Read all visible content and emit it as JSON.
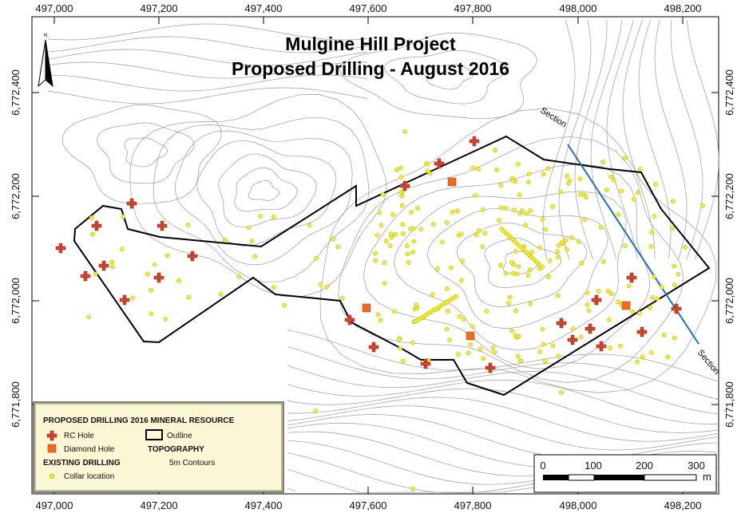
{
  "map": {
    "title_line1": "Mulgine Hill Project",
    "title_line2": "Proposed Drilling - August 2016",
    "x_ticks": [
      "497,000",
      "497,200",
      "497,400",
      "497,600",
      "497,800",
      "498,000",
      "498,200"
    ],
    "y_ticks": [
      "6,772,400",
      "6,772,200",
      "6,772,000",
      "6,771,800"
    ],
    "north_label": "N",
    "section_label_top": "Section",
    "section_label_bottom": "Section",
    "colors": {
      "outline": "#000000",
      "contour": "#9a9a9a",
      "rc_hole": "#d9462b",
      "diamond_hole": "#f26a1b",
      "collar": "#f2ee2a",
      "section_line": "#1a6fc6",
      "legend_bg": "#fbf6d4"
    }
  },
  "legend": {
    "heading_proposed": "PROPOSED DRILLING 2016 MINERAL RESOURCE",
    "rc_hole": "RC Hole",
    "outline": "Outline",
    "diamond_hole": "Diamond Hole",
    "topography": "TOPOGRAPHY",
    "existing_drilling": "EXISTING DRILLING",
    "contours": "5m Contours",
    "collar_location": "Collar location"
  },
  "scale_bar": {
    "labels": [
      "0",
      "100",
      "200",
      "300"
    ],
    "unit": "m"
  }
}
